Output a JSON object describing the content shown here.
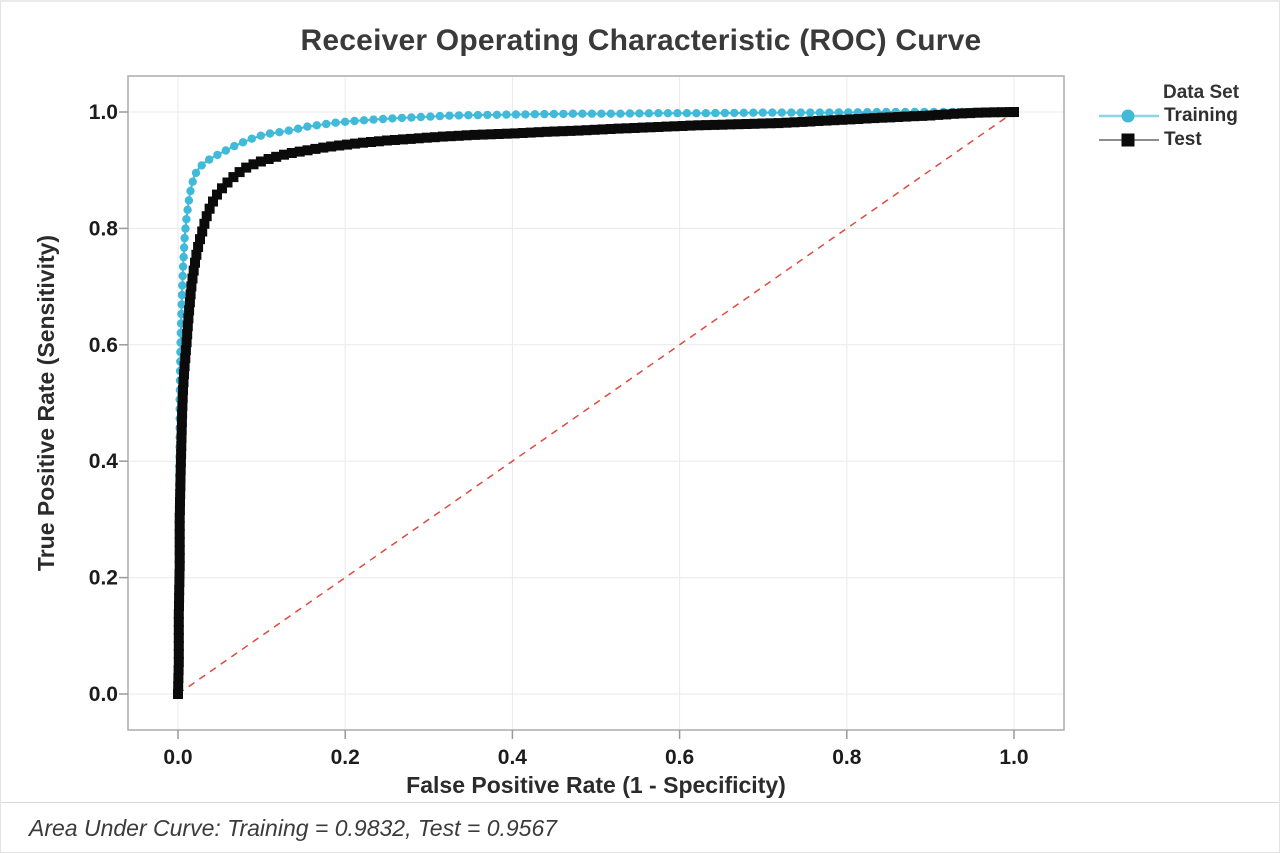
{
  "figure": {
    "title": "Receiver Operating Characteristic (ROC) Curve",
    "footer": "Area Under Curve: Training = 0.9832, Test = 0.9567"
  },
  "legend": {
    "title": "Data Set",
    "items": [
      {
        "label": "Training",
        "marker": "circle",
        "color": "#41BAD9",
        "line_color": "#8FD3E8"
      },
      {
        "label": "Test",
        "marker": "square",
        "color": "#0B0B0B",
        "line_color": "#8E8E8E"
      }
    ]
  },
  "chart_data": {
    "type": "line",
    "title": "Receiver Operating Characteristic (ROC) Curve",
    "xlabel": "False Positive Rate (1 - Specificity)",
    "ylabel": "True Positive Rate (Sensitivity)",
    "xlim": [
      0,
      1
    ],
    "ylim": [
      0,
      1
    ],
    "grid": true,
    "legend_position": "right",
    "x_ticks": [
      0.0,
      0.2,
      0.4,
      0.6,
      0.8,
      1.0
    ],
    "x_tick_labels": [
      "0.0",
      "0.2",
      "0.4",
      "0.6",
      "0.8",
      "1.0"
    ],
    "y_ticks": [
      0.0,
      0.2,
      0.4,
      0.6,
      0.8,
      1.0
    ],
    "y_tick_labels": [
      "0.0",
      "0.2",
      "0.4",
      "0.6",
      "0.8",
      "1.0"
    ],
    "reference_line": {
      "name": "chance-diagonal",
      "style": "dashed",
      "color": "#E1493F",
      "from": [
        0,
        0
      ],
      "to": [
        1,
        1
      ]
    },
    "series": [
      {
        "name": "Training",
        "auc": 0.9832,
        "color": "#41BAD9",
        "line_color": "#41BAD9",
        "marker": "circle",
        "points": [
          [
            0,
            0
          ],
          [
            0.0005,
            0.08
          ],
          [
            0.001,
            0.18
          ],
          [
            0.001,
            0.28
          ],
          [
            0.0015,
            0.36
          ],
          [
            0.002,
            0.44
          ],
          [
            0.002,
            0.5
          ],
          [
            0.0025,
            0.55
          ],
          [
            0.003,
            0.6
          ],
          [
            0.004,
            0.65
          ],
          [
            0.005,
            0.695
          ],
          [
            0.006,
            0.73
          ],
          [
            0.007,
            0.76
          ],
          [
            0.008,
            0.785
          ],
          [
            0.009,
            0.8
          ],
          [
            0.01,
            0.815
          ],
          [
            0.012,
            0.838
          ],
          [
            0.014,
            0.857
          ],
          [
            0.016,
            0.872
          ],
          [
            0.019,
            0.888
          ],
          [
            0.022,
            0.897
          ],
          [
            0.026,
            0.905
          ],
          [
            0.031,
            0.912
          ],
          [
            0.037,
            0.918
          ],
          [
            0.044,
            0.924
          ],
          [
            0.052,
            0.93
          ],
          [
            0.06,
            0.936
          ],
          [
            0.068,
            0.942
          ],
          [
            0.078,
            0.948
          ],
          [
            0.088,
            0.954
          ],
          [
            0.098,
            0.959
          ],
          [
            0.11,
            0.963
          ],
          [
            0.125,
            0.966
          ],
          [
            0.14,
            0.97
          ],
          [
            0.155,
            0.975
          ],
          [
            0.17,
            0.978
          ],
          [
            0.185,
            0.981
          ],
          [
            0.205,
            0.984
          ],
          [
            0.225,
            0.986
          ],
          [
            0.245,
            0.988
          ],
          [
            0.27,
            0.99
          ],
          [
            0.3,
            0.992
          ],
          [
            0.33,
            0.994
          ],
          [
            0.37,
            0.995
          ],
          [
            0.42,
            0.996
          ],
          [
            0.47,
            0.997
          ],
          [
            0.52,
            0.997
          ],
          [
            0.58,
            0.998
          ],
          [
            0.64,
            0.998
          ],
          [
            0.7,
            0.999
          ],
          [
            0.78,
            0.999
          ],
          [
            0.85,
            1
          ],
          [
            0.92,
            1
          ],
          [
            1,
            1
          ]
        ]
      },
      {
        "name": "Test",
        "auc": 0.9567,
        "color": "#0B0B0B",
        "line_color": "#1A1A1A",
        "marker": "square",
        "points": [
          [
            0,
            0
          ],
          [
            0.001,
            0.06
          ],
          [
            0.001,
            0.14
          ],
          [
            0.002,
            0.22
          ],
          [
            0.002,
            0.3
          ],
          [
            0.003,
            0.37
          ],
          [
            0.004,
            0.43
          ],
          [
            0.005,
            0.485
          ],
          [
            0.006,
            0.525
          ],
          [
            0.008,
            0.565
          ],
          [
            0.01,
            0.6
          ],
          [
            0.012,
            0.638
          ],
          [
            0.014,
            0.67
          ],
          [
            0.016,
            0.7
          ],
          [
            0.019,
            0.73
          ],
          [
            0.022,
            0.755
          ],
          [
            0.026,
            0.78
          ],
          [
            0.03,
            0.8
          ],
          [
            0.034,
            0.82
          ],
          [
            0.039,
            0.838
          ],
          [
            0.045,
            0.855
          ],
          [
            0.052,
            0.868
          ],
          [
            0.06,
            0.88
          ],
          [
            0.07,
            0.893
          ],
          [
            0.082,
            0.905
          ],
          [
            0.095,
            0.913
          ],
          [
            0.11,
            0.92
          ],
          [
            0.13,
            0.928
          ],
          [
            0.15,
            0.933
          ],
          [
            0.17,
            0.938
          ],
          [
            0.19,
            0.942
          ],
          [
            0.22,
            0.947
          ],
          [
            0.25,
            0.951
          ],
          [
            0.28,
            0.954
          ],
          [
            0.32,
            0.958
          ],
          [
            0.36,
            0.961
          ],
          [
            0.4,
            0.963
          ],
          [
            0.44,
            0.966
          ],
          [
            0.48,
            0.968
          ],
          [
            0.52,
            0.971
          ],
          [
            0.57,
            0.974
          ],
          [
            0.62,
            0.977
          ],
          [
            0.67,
            0.979
          ],
          [
            0.72,
            0.981
          ],
          [
            0.76,
            0.984
          ],
          [
            0.8,
            0.987
          ],
          [
            0.84,
            0.99
          ],
          [
            0.87,
            0.992
          ],
          [
            0.9,
            0.994
          ],
          [
            0.93,
            0.997
          ],
          [
            0.96,
            0.999
          ],
          [
            1,
            1
          ]
        ]
      }
    ]
  }
}
